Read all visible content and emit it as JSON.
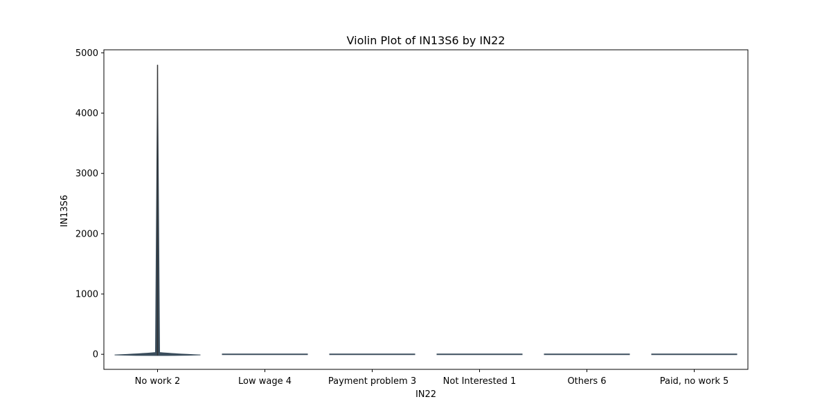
{
  "chart_data": {
    "type": "violin",
    "title": "Violin Plot of IN13S6 by IN22",
    "xlabel": "IN22",
    "ylabel": "IN13S6",
    "categories": [
      "No work 2",
      "Low wage 4",
      "Payment problem 3",
      "Not Interested 1",
      "Others 6",
      "Paid, no work 5"
    ],
    "ylim": [
      -250,
      5050
    ],
    "yticks": [
      0,
      1000,
      2000,
      3000,
      4000,
      5000
    ],
    "ytick_labels": [
      "0",
      "1000",
      "2000",
      "3000",
      "4000",
      "5000"
    ],
    "grid": false,
    "violins": [
      {
        "category": "No work 2",
        "min": -20,
        "max": 4800,
        "peak": 30,
        "q1": 0,
        "median": 0,
        "q3": 0
      },
      {
        "category": "Low wage 4",
        "min": 0,
        "max": 0,
        "peak": 0,
        "q1": 0,
        "median": 0,
        "q3": 0
      },
      {
        "category": "Payment problem 3",
        "min": 0,
        "max": 0,
        "peak": 0,
        "q1": 0,
        "median": 0,
        "q3": 0
      },
      {
        "category": "Not Interested 1",
        "min": 0,
        "max": 0,
        "peak": 0,
        "q1": 0,
        "median": 0,
        "q3": 0
      },
      {
        "category": "Others 6",
        "min": 0,
        "max": 0,
        "peak": 0,
        "q1": 0,
        "median": 0,
        "q3": 0
      },
      {
        "category": "Paid, no work 5",
        "min": 0,
        "max": 0,
        "peak": 0,
        "q1": 0,
        "median": 0,
        "q3": 0
      }
    ],
    "colors": {
      "violin": "#3a4d5c",
      "axis": "#000000"
    }
  }
}
